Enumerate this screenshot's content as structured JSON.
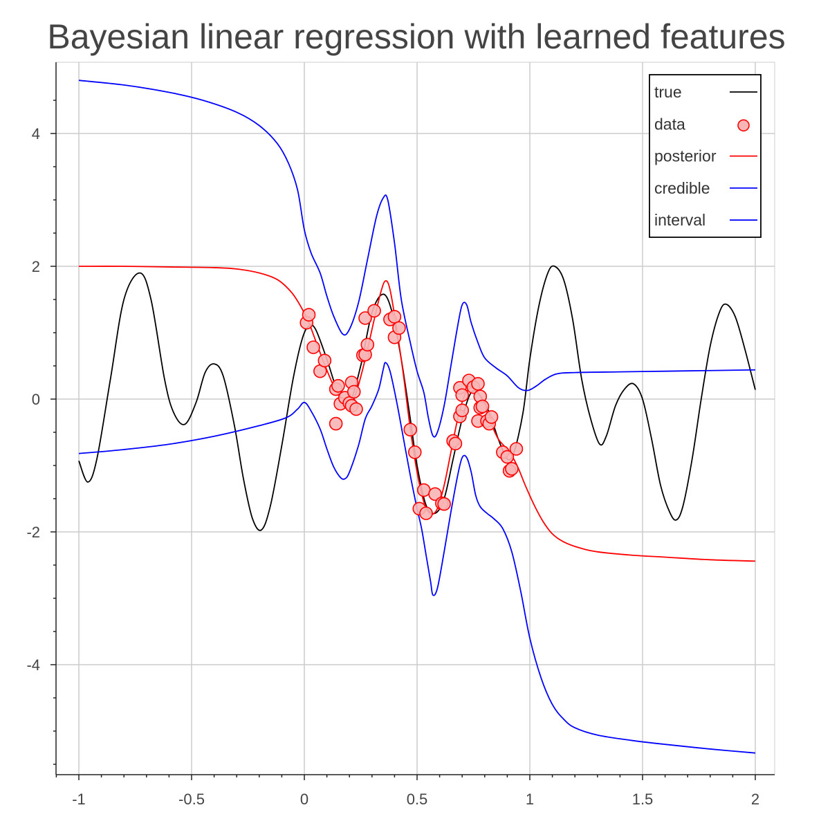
{
  "chart_data": {
    "type": "line",
    "title": "Bayesian linear regression with learned features",
    "xlabel": "",
    "ylabel": "",
    "xlim": [
      -1.1,
      2.1
    ],
    "ylim": [
      -5.6,
      5.0
    ],
    "grid": true,
    "legend_position": "top-right",
    "x_ticks": [
      -1,
      -0.5,
      0,
      0.5,
      1,
      1.5,
      2
    ],
    "x_tick_labels": [
      "-1",
      "-0.5",
      "0",
      "0.5",
      "1",
      "1.5",
      "2"
    ],
    "y_ticks": [
      -4,
      -2,
      0,
      2,
      4
    ],
    "y_tick_labels": [
      "-4",
      "-2",
      "0",
      "2",
      "4"
    ],
    "legend": [
      {
        "label": "true",
        "color": "#000000",
        "marker": "line"
      },
      {
        "label": "data",
        "color": "#ff0000",
        "marker": "circle"
      },
      {
        "label": "posterior",
        "color": "#ff0000",
        "marker": "line"
      },
      {
        "label": "credible",
        "color": "#0000ff",
        "marker": "line"
      },
      {
        "label": "interval",
        "color": "#0000ff",
        "marker": "line"
      }
    ],
    "series": [
      {
        "name": "true",
        "kind": "line",
        "color": "#000000",
        "points": [
          [
            -1.0,
            -0.93
          ],
          [
            -0.96,
            -1.25
          ],
          [
            -0.92,
            -0.9
          ],
          [
            -0.86,
            0.3
          ],
          [
            -0.8,
            1.5
          ],
          [
            -0.73,
            1.9
          ],
          [
            -0.68,
            1.5
          ],
          [
            -0.62,
            0.3
          ],
          [
            -0.58,
            -0.2
          ],
          [
            -0.53,
            -0.38
          ],
          [
            -0.48,
            -0.05
          ],
          [
            -0.44,
            0.4
          ],
          [
            -0.4,
            0.53
          ],
          [
            -0.36,
            0.35
          ],
          [
            -0.31,
            -0.4
          ],
          [
            -0.27,
            -1.2
          ],
          [
            -0.23,
            -1.8
          ],
          [
            -0.19,
            -1.97
          ],
          [
            -0.15,
            -1.6
          ],
          [
            -0.1,
            -0.7
          ],
          [
            -0.05,
            0.3
          ],
          [
            -0.01,
            0.9
          ],
          [
            0.02,
            1.1
          ],
          [
            0.05,
            1.05
          ],
          [
            0.1,
            0.6
          ],
          [
            0.15,
            0.1
          ],
          [
            0.2,
            -0.05
          ],
          [
            0.25,
            0.5
          ],
          [
            0.3,
            1.3
          ],
          [
            0.35,
            1.58
          ],
          [
            0.39,
            1.3
          ],
          [
            0.43,
            0.6
          ],
          [
            0.47,
            -0.3
          ],
          [
            0.5,
            -1.0
          ],
          [
            0.54,
            -1.6
          ],
          [
            0.58,
            -1.72
          ],
          [
            0.62,
            -1.5
          ],
          [
            0.66,
            -0.9
          ],
          [
            0.7,
            -0.3
          ],
          [
            0.74,
            0.1
          ],
          [
            0.78,
            0.05
          ],
          [
            0.82,
            -0.2
          ],
          [
            0.86,
            -0.6
          ],
          [
            0.9,
            -0.9
          ],
          [
            0.93,
            -0.8
          ],
          [
            0.97,
            -0.2
          ],
          [
            1.0,
            0.6
          ],
          [
            1.04,
            1.4
          ],
          [
            1.08,
            1.9
          ],
          [
            1.11,
            2.0
          ],
          [
            1.15,
            1.8
          ],
          [
            1.19,
            1.2
          ],
          [
            1.23,
            0.3
          ],
          [
            1.27,
            -0.3
          ],
          [
            1.31,
            -0.68
          ],
          [
            1.34,
            -0.55
          ],
          [
            1.38,
            -0.1
          ],
          [
            1.42,
            0.15
          ],
          [
            1.46,
            0.23
          ],
          [
            1.5,
            0.0
          ],
          [
            1.54,
            -0.6
          ],
          [
            1.58,
            -1.3
          ],
          [
            1.62,
            -1.7
          ],
          [
            1.65,
            -1.82
          ],
          [
            1.68,
            -1.6
          ],
          [
            1.72,
            -0.9
          ],
          [
            1.76,
            0.0
          ],
          [
            1.8,
            0.8
          ],
          [
            1.84,
            1.3
          ],
          [
            1.87,
            1.43
          ],
          [
            1.91,
            1.25
          ],
          [
            1.95,
            0.8
          ],
          [
            2.0,
            0.14
          ]
        ]
      },
      {
        "name": "posterior",
        "kind": "line",
        "color": "#ff0000",
        "points": [
          [
            -1.0,
            2.0
          ],
          [
            -0.8,
            2.0
          ],
          [
            -0.6,
            1.99
          ],
          [
            -0.4,
            1.98
          ],
          [
            -0.3,
            1.96
          ],
          [
            -0.2,
            1.9
          ],
          [
            -0.12,
            1.8
          ],
          [
            -0.06,
            1.62
          ],
          [
            -0.02,
            1.42
          ],
          [
            0.02,
            1.15
          ],
          [
            0.05,
            0.88
          ],
          [
            0.09,
            0.52
          ],
          [
            0.13,
            0.2
          ],
          [
            0.17,
            -0.02
          ],
          [
            0.2,
            -0.08
          ],
          [
            0.23,
            0.1
          ],
          [
            0.27,
            0.6
          ],
          [
            0.31,
            1.2
          ],
          [
            0.34,
            1.62
          ],
          [
            0.36,
            1.78
          ],
          [
            0.38,
            1.65
          ],
          [
            0.41,
            1.05
          ],
          [
            0.44,
            0.35
          ],
          [
            0.47,
            -0.45
          ],
          [
            0.5,
            -1.1
          ],
          [
            0.53,
            -1.55
          ],
          [
            0.56,
            -1.73
          ],
          [
            0.59,
            -1.65
          ],
          [
            0.62,
            -1.3
          ],
          [
            0.65,
            -0.8
          ],
          [
            0.68,
            -0.3
          ],
          [
            0.71,
            0.05
          ],
          [
            0.74,
            0.17
          ],
          [
            0.77,
            0.1
          ],
          [
            0.8,
            -0.1
          ],
          [
            0.83,
            -0.38
          ],
          [
            0.86,
            -0.6
          ],
          [
            0.89,
            -0.72
          ],
          [
            0.92,
            -0.85
          ],
          [
            0.95,
            -1.05
          ],
          [
            0.98,
            -1.3
          ],
          [
            1.02,
            -1.6
          ],
          [
            1.06,
            -1.85
          ],
          [
            1.1,
            -2.03
          ],
          [
            1.15,
            -2.15
          ],
          [
            1.22,
            -2.24
          ],
          [
            1.3,
            -2.3
          ],
          [
            1.45,
            -2.35
          ],
          [
            1.6,
            -2.38
          ],
          [
            1.8,
            -2.42
          ],
          [
            2.0,
            -2.44
          ]
        ]
      },
      {
        "name": "credible",
        "kind": "line",
        "color": "#0000ff",
        "points": [
          [
            -1.0,
            4.8
          ],
          [
            -0.8,
            4.73
          ],
          [
            -0.6,
            4.62
          ],
          [
            -0.45,
            4.5
          ],
          [
            -0.3,
            4.32
          ],
          [
            -0.2,
            4.12
          ],
          [
            -0.12,
            3.85
          ],
          [
            -0.07,
            3.55
          ],
          [
            -0.03,
            3.15
          ],
          [
            0.0,
            2.55
          ],
          [
            0.03,
            2.2
          ],
          [
            0.07,
            1.9
          ],
          [
            0.1,
            1.55
          ],
          [
            0.13,
            1.25
          ],
          [
            0.17,
            0.98
          ],
          [
            0.2,
            1.05
          ],
          [
            0.24,
            1.45
          ],
          [
            0.28,
            2.1
          ],
          [
            0.32,
            2.75
          ],
          [
            0.35,
            3.03
          ],
          [
            0.37,
            3.0
          ],
          [
            0.4,
            2.35
          ],
          [
            0.43,
            1.5
          ],
          [
            0.47,
            0.85
          ],
          [
            0.5,
            0.42
          ],
          [
            0.53,
            0.1
          ],
          [
            0.55,
            -0.28
          ],
          [
            0.57,
            -0.55
          ],
          [
            0.59,
            -0.5
          ],
          [
            0.62,
            -0.1
          ],
          [
            0.65,
            0.5
          ],
          [
            0.68,
            1.1
          ],
          [
            0.7,
            1.42
          ],
          [
            0.72,
            1.42
          ],
          [
            0.74,
            1.15
          ],
          [
            0.77,
            0.85
          ],
          [
            0.8,
            0.62
          ],
          [
            0.85,
            0.47
          ],
          [
            0.9,
            0.35
          ],
          [
            0.95,
            0.17
          ],
          [
            0.99,
            0.13
          ],
          [
            1.03,
            0.2
          ],
          [
            1.07,
            0.3
          ],
          [
            1.12,
            0.38
          ],
          [
            1.2,
            0.4
          ],
          [
            1.4,
            0.41
          ],
          [
            1.6,
            0.42
          ],
          [
            1.8,
            0.43
          ],
          [
            2.0,
            0.44
          ]
        ]
      },
      {
        "name": "interval",
        "kind": "line",
        "color": "#0000ff",
        "points": [
          [
            -1.0,
            -0.82
          ],
          [
            -0.8,
            -0.76
          ],
          [
            -0.6,
            -0.68
          ],
          [
            -0.4,
            -0.56
          ],
          [
            -0.2,
            -0.4
          ],
          [
            -0.08,
            -0.28
          ],
          [
            -0.03,
            -0.15
          ],
          [
            0.0,
            -0.05
          ],
          [
            0.03,
            -0.18
          ],
          [
            0.07,
            -0.45
          ],
          [
            0.1,
            -0.75
          ],
          [
            0.13,
            -1.02
          ],
          [
            0.16,
            -1.18
          ],
          [
            0.18,
            -1.2
          ],
          [
            0.2,
            -1.1
          ],
          [
            0.24,
            -0.7
          ],
          [
            0.27,
            -0.3
          ],
          [
            0.3,
            -0.1
          ],
          [
            0.33,
            0.15
          ],
          [
            0.35,
            0.45
          ],
          [
            0.36,
            0.55
          ],
          [
            0.38,
            0.42
          ],
          [
            0.41,
            -0.05
          ],
          [
            0.44,
            -0.6
          ],
          [
            0.47,
            -1.15
          ],
          [
            0.5,
            -1.65
          ],
          [
            0.52,
            -1.95
          ],
          [
            0.54,
            -2.35
          ],
          [
            0.56,
            -2.75
          ],
          [
            0.57,
            -2.95
          ],
          [
            0.59,
            -2.85
          ],
          [
            0.62,
            -2.3
          ],
          [
            0.65,
            -1.7
          ],
          [
            0.68,
            -1.15
          ],
          [
            0.7,
            -0.88
          ],
          [
            0.72,
            -0.88
          ],
          [
            0.74,
            -1.1
          ],
          [
            0.76,
            -1.45
          ],
          [
            0.78,
            -1.62
          ],
          [
            0.81,
            -1.72
          ],
          [
            0.84,
            -1.8
          ],
          [
            0.88,
            -1.95
          ],
          [
            0.92,
            -2.3
          ],
          [
            0.96,
            -2.9
          ],
          [
            1.0,
            -3.6
          ],
          [
            1.05,
            -4.2
          ],
          [
            1.1,
            -4.6
          ],
          [
            1.15,
            -4.82
          ],
          [
            1.2,
            -4.95
          ],
          [
            1.3,
            -5.06
          ],
          [
            1.45,
            -5.14
          ],
          [
            1.6,
            -5.2
          ],
          [
            1.8,
            -5.27
          ],
          [
            2.0,
            -5.33
          ]
        ]
      },
      {
        "name": "data",
        "kind": "scatter",
        "color": "#ff0000",
        "fill": "#f7b5b5",
        "points": [
          [
            0.01,
            1.15
          ],
          [
            0.02,
            1.27
          ],
          [
            0.04,
            0.78
          ],
          [
            0.07,
            0.42
          ],
          [
            0.09,
            0.58
          ],
          [
            0.14,
            0.15
          ],
          [
            0.14,
            -0.37
          ],
          [
            0.15,
            0.2
          ],
          [
            0.16,
            -0.07
          ],
          [
            0.18,
            0.02
          ],
          [
            0.2,
            -0.06
          ],
          [
            0.21,
            0.25
          ],
          [
            0.21,
            -0.1
          ],
          [
            0.22,
            0.11
          ],
          [
            0.23,
            -0.15
          ],
          [
            0.26,
            0.66
          ],
          [
            0.27,
            0.67
          ],
          [
            0.27,
            1.22
          ],
          [
            0.28,
            0.82
          ],
          [
            0.31,
            1.33
          ],
          [
            0.38,
            1.2
          ],
          [
            0.4,
            1.24
          ],
          [
            0.4,
            0.93
          ],
          [
            0.42,
            1.07
          ],
          [
            0.47,
            -0.46
          ],
          [
            0.49,
            -0.8
          ],
          [
            0.51,
            -1.65
          ],
          [
            0.53,
            -1.37
          ],
          [
            0.54,
            -1.72
          ],
          [
            0.58,
            -1.43
          ],
          [
            0.61,
            -1.57
          ],
          [
            0.62,
            -1.58
          ],
          [
            0.66,
            -0.63
          ],
          [
            0.67,
            -0.67
          ],
          [
            0.69,
            0.17
          ],
          [
            0.69,
            -0.26
          ],
          [
            0.7,
            0.06
          ],
          [
            0.7,
            -0.17
          ],
          [
            0.73,
            0.28
          ],
          [
            0.75,
            0.18
          ],
          [
            0.77,
            0.23
          ],
          [
            0.77,
            -0.33
          ],
          [
            0.78,
            0.04
          ],
          [
            0.78,
            -0.13
          ],
          [
            0.79,
            -0.11
          ],
          [
            0.81,
            -0.33
          ],
          [
            0.82,
            -0.37
          ],
          [
            0.83,
            -0.27
          ],
          [
            0.88,
            -0.8
          ],
          [
            0.9,
            -0.87
          ],
          [
            0.91,
            -1.08
          ],
          [
            0.92,
            -1.05
          ],
          [
            0.94,
            -0.75
          ]
        ]
      }
    ]
  }
}
